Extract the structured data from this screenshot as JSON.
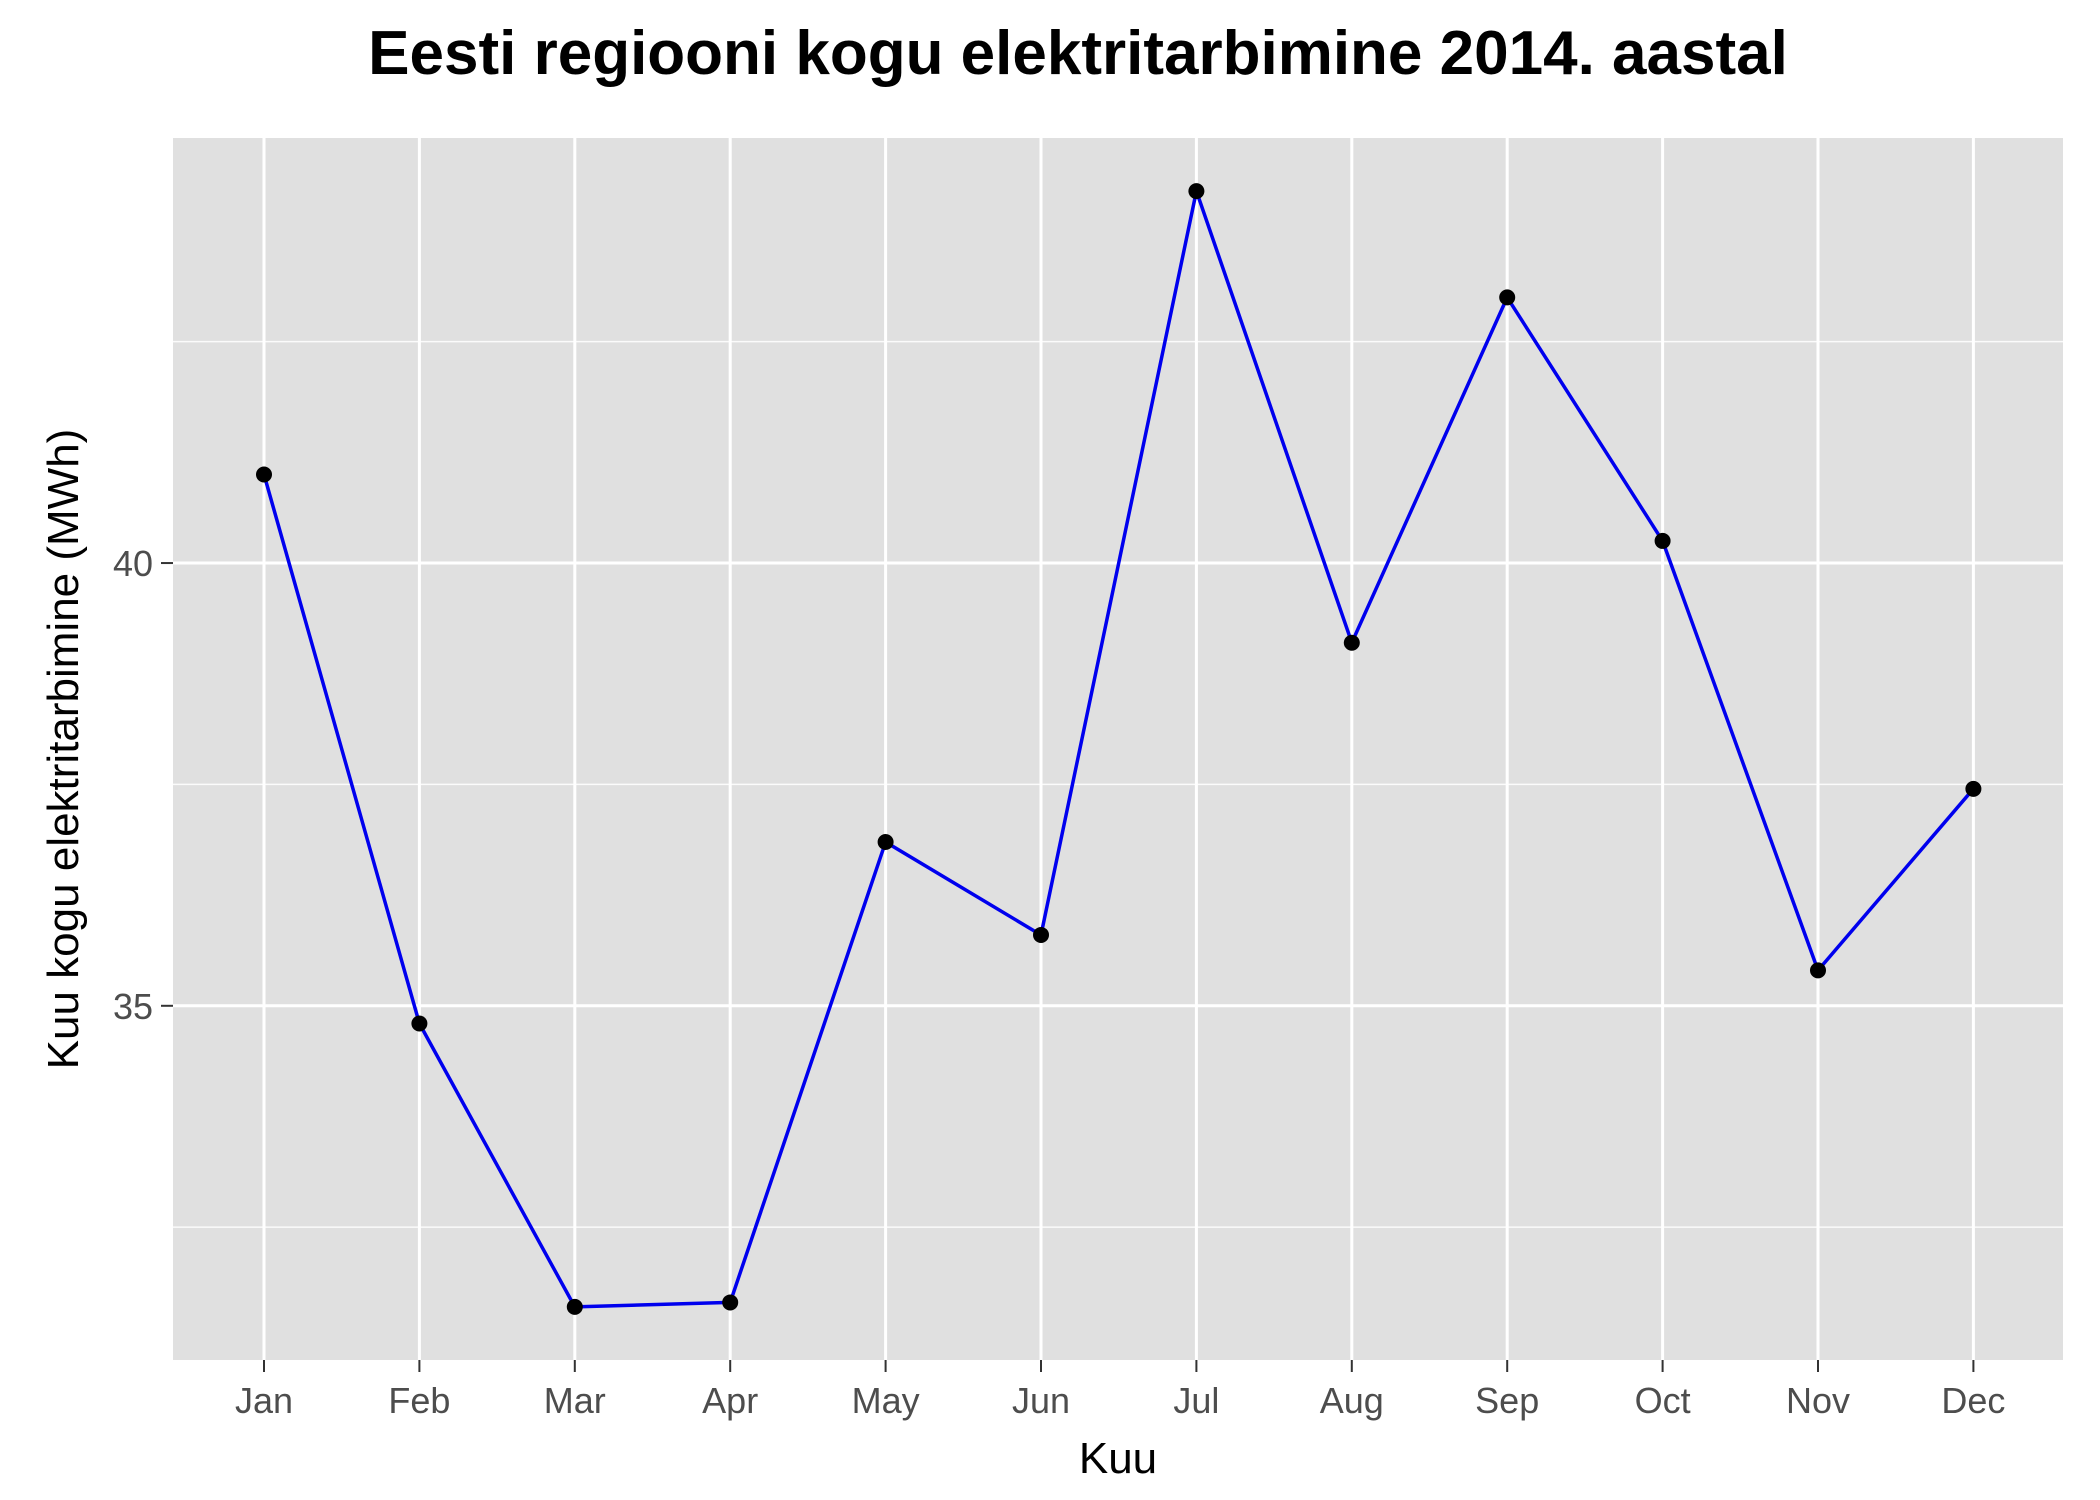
{
  "chart_data": {
    "type": "line",
    "title": "Eesti regiooni kogu elektritarbimine 2014. aastal",
    "xlabel": "Kuu",
    "ylabel": "Kuu kogu elektritarbimine (MWh)",
    "categories": [
      "Jan",
      "Feb",
      "Mar",
      "Apr",
      "May",
      "Jun",
      "Jul",
      "Aug",
      "Sep",
      "Oct",
      "Nov",
      "Dec"
    ],
    "series": [
      {
        "values": [
          41.0,
          34.8,
          31.6,
          31.65,
          36.85,
          35.8,
          44.2,
          39.1,
          43.0,
          40.25,
          35.4,
          37.45
        ]
      }
    ],
    "ylim": [
      31.0,
      44.8
    ],
    "yticks": [
      35,
      40
    ],
    "yticks_minor": [
      32.5,
      37.5,
      42.5
    ],
    "grid": true,
    "legend": "none",
    "colors": {
      "line": "#0000ee",
      "point": "#000000",
      "panel": "#e0e0e0",
      "grid": "#ffffff"
    }
  }
}
